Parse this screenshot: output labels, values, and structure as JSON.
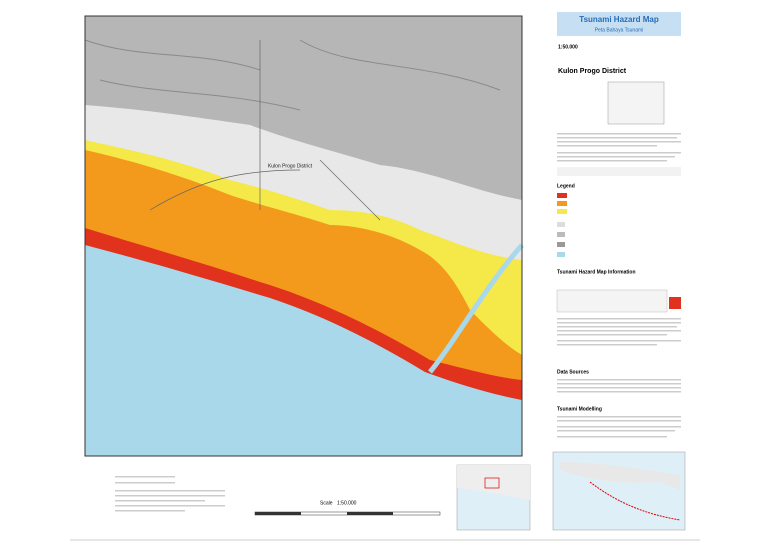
{
  "header": {
    "title": "Tsunami Hazard Map",
    "subtitle": "Peta Bahaya Tsunami"
  },
  "scale": "1:50.000",
  "district": "Kulon Progo District",
  "map_label": "Kulon Progo District",
  "sections": {
    "legend": "Legend",
    "info": "Tsunami Hazard Map Information",
    "data_sources": "Data Sources",
    "modelling": "Tsunami Modelling"
  },
  "scale_bar": {
    "label": "Scale",
    "value": "1:50.000"
  }
}
